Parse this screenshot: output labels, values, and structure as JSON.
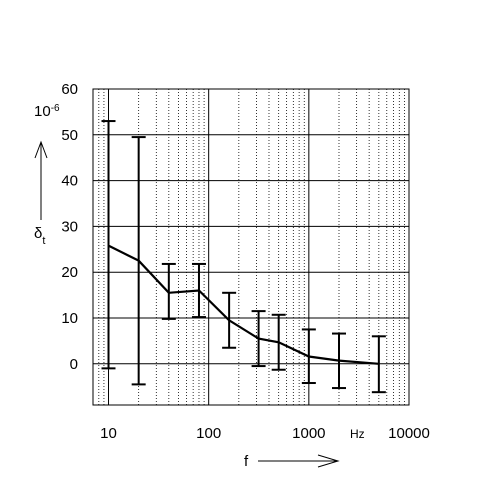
{
  "chart_data": {
    "type": "line",
    "x_scale": "log",
    "xlim": [
      7,
      10000
    ],
    "ylim": [
      -9,
      60
    ],
    "grid": "major solid, minor dotted (log x)",
    "x_ticks": [
      {
        "value": 10,
        "label": "10"
      },
      {
        "value": 100,
        "label": "100"
      },
      {
        "value": 1000,
        "label": "1000"
      },
      {
        "value": 10000,
        "label": "10000"
      }
    ],
    "x_unit_label": "Hz",
    "y_ticks": [
      {
        "value": 60,
        "label": "60"
      },
      {
        "value": 50,
        "label": "50"
      },
      {
        "value": 40,
        "label": "40"
      },
      {
        "value": 30,
        "label": "30"
      },
      {
        "value": 20,
        "label": "20"
      },
      {
        "value": 10,
        "label": "10"
      },
      {
        "value": 0,
        "label": "0"
      }
    ],
    "y_scale_label": "10",
    "y_scale_exponent": "-6",
    "xlabel": "f",
    "ylabel": "δ",
    "ylabel_sub": "t",
    "series": [
      {
        "points": [
          {
            "x": 10,
            "y": 25.8,
            "low": -1,
            "high": 53
          },
          {
            "x": 20,
            "y": 22.5,
            "low": -4.5,
            "high": 49.5
          },
          {
            "x": 40,
            "y": 15.5,
            "low": 9.8,
            "high": 21.8
          },
          {
            "x": 80,
            "y": 16,
            "low": 10.2,
            "high": 21.8
          },
          {
            "x": 160,
            "y": 9.5,
            "low": 3.5,
            "high": 15.5
          },
          {
            "x": 315,
            "y": 5.5,
            "low": -0.5,
            "high": 11.5
          },
          {
            "x": 500,
            "y": 4.7,
            "low": -1.3,
            "high": 10.7
          },
          {
            "x": 1000,
            "y": 1.6,
            "low": -4.2,
            "high": 7.5
          },
          {
            "x": 2000,
            "y": 0.7,
            "low": -5.3,
            "high": 6.6
          },
          {
            "x": 5000,
            "y": 0,
            "low": -6.2,
            "high": 6
          }
        ]
      }
    ]
  }
}
